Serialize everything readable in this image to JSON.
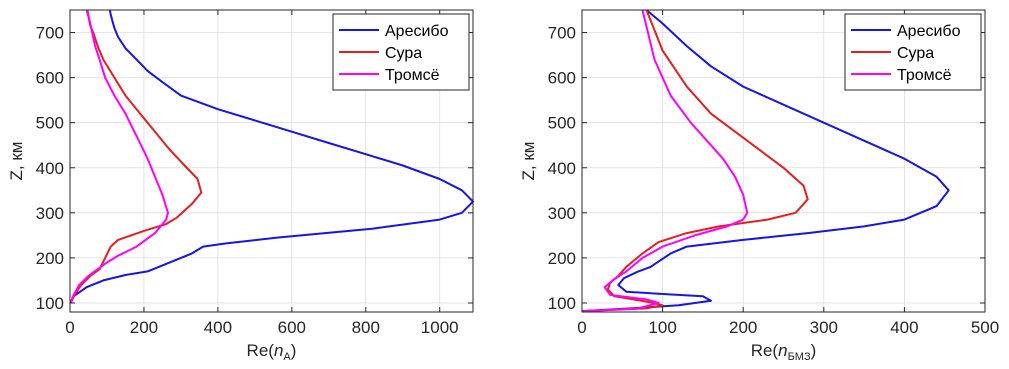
{
  "chart_data": [
    {
      "type": "line",
      "xlabel_prefix": "Re(",
      "xlabel_var": "n",
      "xlabel_sub": "A",
      "xlabel_suffix": ")",
      "ylabel": "Z, км",
      "xlim": [
        0,
        1090
      ],
      "ylim": [
        80,
        750
      ],
      "xticks": [
        0,
        200,
        400,
        600,
        800,
        1000
      ],
      "yticks": [
        100,
        200,
        300,
        400,
        500,
        600,
        700
      ],
      "grid": true,
      "legend_position": "top-right",
      "series": [
        {
          "name": "Аресибо",
          "color": "#1515e6",
          "x": [
            2,
            10,
            45,
            90,
            150,
            210,
            270,
            330,
            360,
            420,
            560,
            820,
            1000,
            1060,
            1090,
            1060,
            1000,
            900,
            800,
            700,
            600,
            500,
            400,
            300,
            250,
            210,
            180,
            150,
            130,
            120,
            115,
            110,
            108
          ],
          "y": [
            100,
            115,
            135,
            150,
            162,
            170,
            190,
            210,
            225,
            232,
            245,
            265,
            285,
            300,
            325,
            350,
            375,
            405,
            430,
            455,
            480,
            505,
            530,
            560,
            590,
            615,
            640,
            665,
            690,
            710,
            725,
            740,
            750
          ]
        },
        {
          "name": "Сура",
          "color": "#e61e1e",
          "x": [
            2,
            10,
            30,
            55,
            80,
            110,
            130,
            200,
            260,
            290,
            330,
            355,
            345,
            310,
            270,
            230,
            190,
            150,
            120,
            90,
            75,
            65,
            55,
            50,
            45
          ],
          "y": [
            100,
            115,
            140,
            160,
            175,
            225,
            240,
            260,
            275,
            290,
            320,
            345,
            375,
            405,
            440,
            480,
            520,
            560,
            600,
            640,
            670,
            695,
            715,
            735,
            750
          ]
        },
        {
          "name": "Тромсё",
          "color": "#ff00ff",
          "x": [
            2,
            8,
            25,
            50,
            75,
            100,
            130,
            180,
            230,
            260,
            265,
            250,
            230,
            210,
            180,
            150,
            120,
            95,
            80,
            68,
            60,
            52,
            47
          ],
          "y": [
            100,
            115,
            140,
            160,
            175,
            190,
            205,
            225,
            255,
            285,
            300,
            340,
            380,
            420,
            470,
            520,
            560,
            600,
            640,
            670,
            700,
            730,
            750
          ]
        }
      ]
    },
    {
      "type": "line",
      "xlabel_prefix": "Re(",
      "xlabel_var": "n",
      "xlabel_sub": "БМЗ",
      "xlabel_suffix": ")",
      "ylabel": "Z, км",
      "xlim": [
        0,
        500
      ],
      "ylim": [
        80,
        750
      ],
      "xticks": [
        0,
        100,
        200,
        300,
        400,
        500
      ],
      "xticklabels": [
        "0",
        "100",
        "200",
        "300",
        "400",
        "500"
      ],
      "yticks": [
        100,
        200,
        300,
        400,
        500,
        600,
        700
      ],
      "grid": true,
      "legend_position": "top-right",
      "series": [
        {
          "name": "Аресибо",
          "color": "#1515e6",
          "x": [
            0,
            60,
            120,
            160,
            150,
            100,
            55,
            45,
            52,
            70,
            85,
            110,
            130,
            200,
            280,
            350,
            400,
            440,
            455,
            440,
            400,
            350,
            300,
            250,
            200,
            160,
            130,
            100,
            80
          ],
          "y": [
            82,
            88,
            95,
            105,
            115,
            120,
            125,
            140,
            155,
            170,
            180,
            210,
            225,
            240,
            255,
            270,
            285,
            315,
            350,
            380,
            420,
            460,
            500,
            540,
            580,
            625,
            670,
            720,
            750
          ]
        },
        {
          "name": "Сура",
          "color": "#e61e1e",
          "x": [
            0,
            80,
            100,
            80,
            40,
            32,
            35,
            45,
            55,
            75,
            95,
            130,
            170,
            230,
            265,
            280,
            275,
            250,
            220,
            190,
            160,
            130,
            100,
            80
          ],
          "y": [
            82,
            88,
            95,
            103,
            115,
            130,
            145,
            160,
            180,
            210,
            235,
            255,
            270,
            285,
            300,
            330,
            360,
            400,
            440,
            480,
            520,
            580,
            660,
            750
          ]
        },
        {
          "name": "Тромсё",
          "color": "#ff00ff",
          "x": [
            0,
            70,
            95,
            80,
            35,
            28,
            38,
            55,
            75,
            100,
            140,
            180,
            200,
            205,
            200,
            190,
            175,
            155,
            135,
            110,
            90,
            75
          ],
          "y": [
            82,
            88,
            100,
            108,
            118,
            135,
            150,
            170,
            200,
            225,
            250,
            270,
            285,
            300,
            340,
            380,
            420,
            460,
            500,
            560,
            640,
            750
          ]
        }
      ]
    }
  ]
}
